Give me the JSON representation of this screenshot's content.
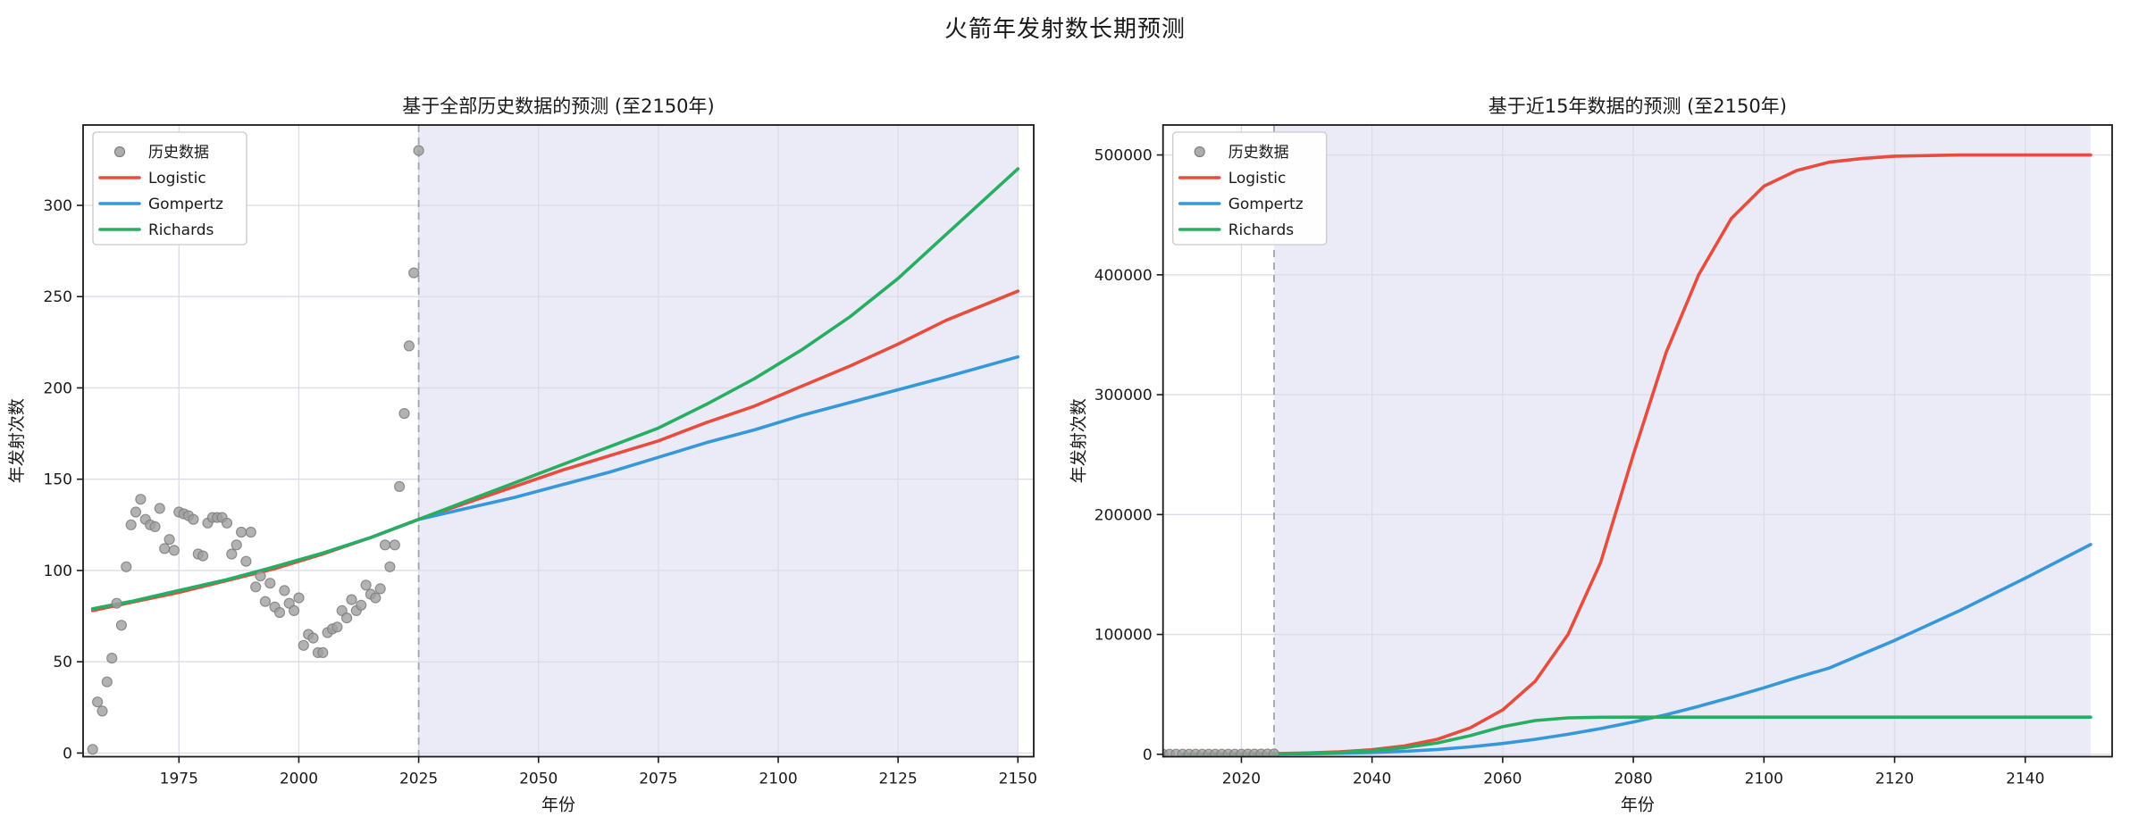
{
  "figure": {
    "title": "火箭年发射数长期预测",
    "background": "#ffffff"
  },
  "colors": {
    "logistic": "#e74c3c",
    "gompertz": "#3498db",
    "richards": "#27ae60",
    "history_dot": "#9f9f9f",
    "history_dot_edge": "#7f7f7f",
    "forecast_shade": "#ebebf8",
    "vline": "#a3a3a3",
    "grid": "#dcdce6",
    "spine": "#1a1a1a",
    "legend_border": "#c9c9c9"
  },
  "chart_data": [
    {
      "type": "line",
      "title": "基于全部历史数据的预测 (至2150年)",
      "xlabel": "年份",
      "ylabel": "年发射次数",
      "xlim": [
        1955,
        2153.3
      ],
      "ylim": [
        -2,
        344
      ],
      "xticks": [
        1975,
        2000,
        2025,
        2050,
        2075,
        2100,
        2125,
        2150
      ],
      "yticks": [
        0,
        50,
        100,
        150,
        200,
        250,
        300
      ],
      "grid": true,
      "legend_position": "upper-left",
      "forecast_region": {
        "start": 2025,
        "end": 2150
      },
      "vline_year": 2025,
      "scatter": {
        "label": "历史数据",
        "years": [
          1957,
          1958,
          1959,
          1960,
          1961,
          1962,
          1963,
          1964,
          1965,
          1966,
          1967,
          1968,
          1969,
          1970,
          1971,
          1972,
          1973,
          1974,
          1975,
          1976,
          1977,
          1978,
          1979,
          1980,
          1981,
          1982,
          1983,
          1984,
          1985,
          1986,
          1987,
          1988,
          1989,
          1990,
          1991,
          1992,
          1993,
          1994,
          1995,
          1996,
          1997,
          1998,
          1999,
          2000,
          2001,
          2002,
          2003,
          2004,
          2005,
          2006,
          2007,
          2008,
          2009,
          2010,
          2011,
          2012,
          2013,
          2014,
          2015,
          2016,
          2017,
          2018,
          2019,
          2020,
          2021,
          2022,
          2023,
          2024,
          2025
        ],
        "values": [
          2,
          28,
          23,
          39,
          52,
          82,
          70,
          102,
          125,
          132,
          139,
          128,
          125,
          124,
          134,
          112,
          117,
          111,
          132,
          131,
          130,
          128,
          109,
          108,
          126,
          129,
          129,
          129,
          126,
          109,
          114,
          121,
          105,
          121,
          91,
          97,
          83,
          93,
          80,
          77,
          89,
          82,
          78,
          85,
          59,
          65,
          63,
          55,
          55,
          66,
          68,
          69,
          78,
          74,
          84,
          78,
          81,
          92,
          87,
          85,
          90,
          114,
          102,
          114,
          146,
          186,
          223,
          263,
          330
        ]
      },
      "series": [
        {
          "name": "Logistic",
          "color": "#e74c3c",
          "x": [
            1957,
            1965,
            1975,
            1985,
            1995,
            2005,
            2015,
            2025,
            2035,
            2045,
            2055,
            2065,
            2075,
            2085,
            2095,
            2105,
            2115,
            2125,
            2135,
            2150
          ],
          "y": [
            78,
            82.5,
            88,
            94.5,
            101,
            109,
            118,
            128,
            137,
            146,
            155,
            163,
            171,
            181,
            190,
            201,
            212,
            224,
            237,
            253
          ]
        },
        {
          "name": "Gompertz",
          "color": "#3498db",
          "x": [
            1957,
            1965,
            1975,
            1985,
            1995,
            2005,
            2015,
            2025,
            2035,
            2045,
            2055,
            2065,
            2075,
            2085,
            2095,
            2105,
            2115,
            2125,
            2135,
            2150
          ],
          "y": [
            79,
            83,
            89,
            95,
            102,
            109.5,
            118,
            128,
            134,
            140,
            147,
            154,
            162,
            170,
            177,
            185,
            192,
            199,
            206,
            217
          ]
        },
        {
          "name": "Richards",
          "color": "#27ae60",
          "x": [
            1957,
            1965,
            1975,
            1985,
            1995,
            2005,
            2015,
            2025,
            2035,
            2045,
            2055,
            2065,
            2075,
            2085,
            2095,
            2105,
            2115,
            2125,
            2135,
            2150
          ],
          "y": [
            79,
            83,
            89,
            95,
            102,
            109.5,
            118,
            128,
            138,
            148,
            158,
            168,
            178,
            191,
            205,
            221,
            239,
            260,
            284,
            320
          ]
        }
      ]
    },
    {
      "type": "line",
      "title": "基于近15年数据的预测 (至2150年)",
      "xlabel": "年份",
      "ylabel": "年发射次数",
      "xlim": [
        2008,
        2153.3
      ],
      "ylim": [
        -2000,
        525000
      ],
      "xticks": [
        2020,
        2040,
        2060,
        2080,
        2100,
        2120,
        2140
      ],
      "yticks": [
        0,
        100000,
        200000,
        300000,
        400000,
        500000
      ],
      "grid": true,
      "legend_position": "upper-left",
      "forecast_region": {
        "start": 2025,
        "end": 2150
      },
      "vline_year": 2025,
      "scatter": {
        "label": "历史数据",
        "years": [
          2008,
          2009,
          2010,
          2011,
          2012,
          2013,
          2014,
          2015,
          2016,
          2017,
          2018,
          2019,
          2020,
          2021,
          2022,
          2023,
          2024,
          2025
        ],
        "values": [
          69,
          78,
          74,
          84,
          78,
          81,
          92,
          87,
          85,
          90,
          114,
          102,
          114,
          146,
          186,
          223,
          263,
          330
        ]
      },
      "series": [
        {
          "name": "Logistic",
          "color": "#e74c3c",
          "x": [
            2011,
            2020,
            2025,
            2030,
            2035,
            2040,
            2045,
            2050,
            2055,
            2060,
            2065,
            2070,
            2075,
            2080,
            2085,
            2090,
            2095,
            2100,
            2105,
            2110,
            2115,
            2120,
            2130,
            2140,
            2150
          ],
          "y": [
            100,
            300,
            600,
            1100,
            2100,
            3800,
            7000,
            12500,
            22000,
            37000,
            61000,
            100000,
            160000,
            250000,
            335000,
            400000,
            447000,
            474000,
            487000,
            494000,
            497000,
            499000,
            500000,
            500000,
            500000
          ]
        },
        {
          "name": "Gompertz",
          "color": "#3498db",
          "x": [
            2011,
            2020,
            2025,
            2030,
            2035,
            2040,
            2045,
            2050,
            2055,
            2060,
            2065,
            2070,
            2075,
            2080,
            2085,
            2090,
            2095,
            2100,
            2105,
            2110,
            2115,
            2120,
            2130,
            2140,
            2150
          ],
          "y": [
            0,
            100,
            200,
            400,
            800,
            1500,
            2500,
            4000,
            6200,
            9000,
            12500,
            16700,
            21500,
            27000,
            33000,
            40000,
            47500,
            55500,
            64000,
            72000,
            83500,
            95000,
            120000,
            147000,
            175000
          ]
        },
        {
          "name": "Richards",
          "color": "#27ae60",
          "x": [
            2011,
            2020,
            2025,
            2030,
            2035,
            2040,
            2045,
            2050,
            2055,
            2060,
            2065,
            2070,
            2075,
            2080,
            2085,
            2090,
            2095,
            2100,
            2105,
            2110,
            2115,
            2120,
            2130,
            2140,
            2150
          ],
          "y": [
            0,
            100,
            300,
            700,
            1500,
            3000,
            5500,
            9500,
            15500,
            23000,
            28200,
            30400,
            30900,
            31000,
            31000,
            31000,
            31000,
            31000,
            31000,
            31000,
            31000,
            31000,
            31000,
            31000,
            31000
          ]
        }
      ]
    }
  ]
}
